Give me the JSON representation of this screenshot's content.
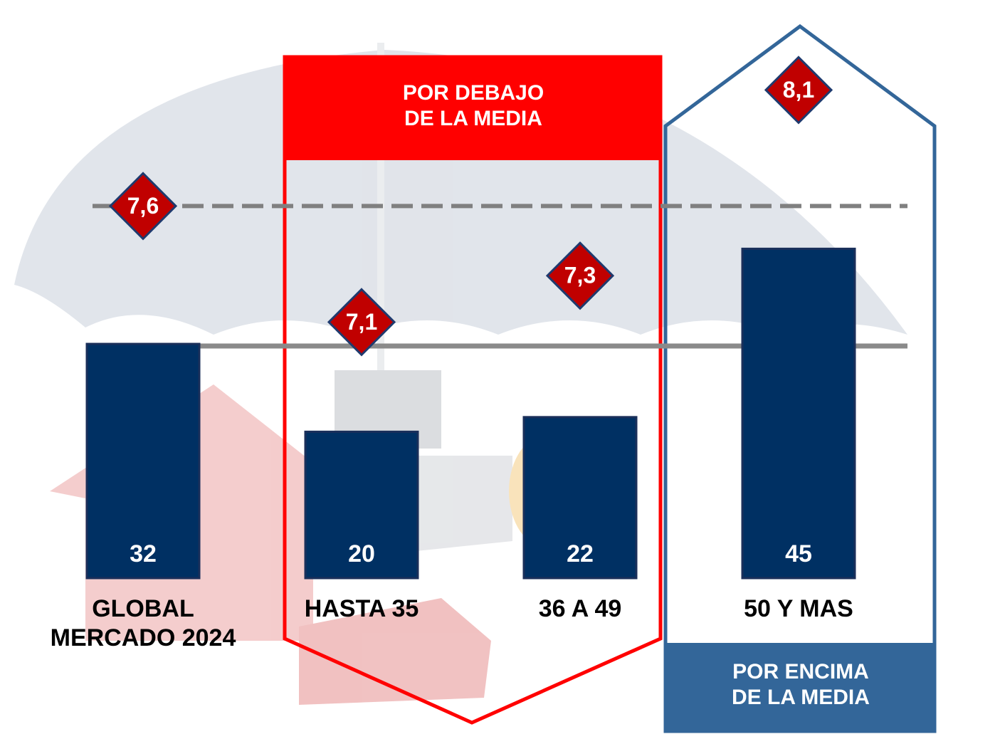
{
  "chart_data": {
    "type": "bar",
    "categories": [
      "GLOBAL MERCADO 2024",
      "HASTA 35",
      "36 A 49",
      "50 Y MAS"
    ],
    "series": [
      {
        "type": "bar",
        "color": "#003063",
        "values": [
          32,
          20,
          22,
          45
        ]
      },
      {
        "type": "diamond",
        "axis": "y2",
        "color": "#c00000",
        "values": [
          7.6,
          7.1,
          7.3,
          8.1
        ],
        "value_labels": [
          "7,6",
          "7,1",
          "7,3",
          "8,1"
        ]
      }
    ],
    "ylim": [
      0,
      50
    ],
    "y2lim": [
      7,
      8
    ],
    "annotations": [
      "POR DEBAJO DE LA MEDIA",
      "POR ENCIMA DE LA MEDIA"
    ],
    "annotation_colors": [
      "#ff0000",
      "#336699"
    ]
  }
}
